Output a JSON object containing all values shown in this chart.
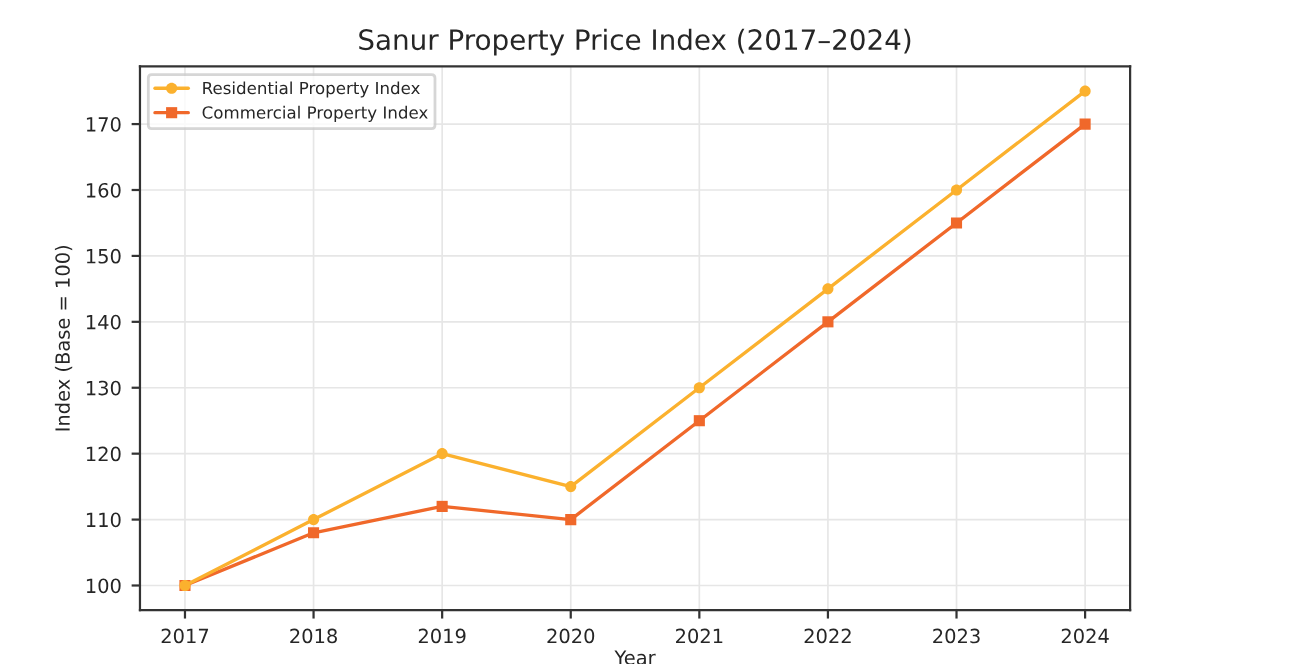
{
  "chart_data": {
    "type": "line",
    "title": "Sanur Property Price Index (2017–2024)",
    "xlabel": "Year",
    "ylabel": "Index (Base = 100)",
    "x": [
      2017,
      2018,
      2019,
      2020,
      2021,
      2022,
      2023,
      2024
    ],
    "series": [
      {
        "name": "Residential Property Index",
        "color": "#fbb12e",
        "marker": "circle",
        "values": [
          100,
          110,
          120,
          115,
          130,
          145,
          160,
          175
        ]
      },
      {
        "name": "Commercial Property Index",
        "color": "#f0682a",
        "marker": "square",
        "values": [
          100,
          108,
          112,
          110,
          125,
          140,
          155,
          170
        ]
      }
    ],
    "xlim": [
      2016.65,
      2024.35
    ],
    "xticks": [
      2017,
      2018,
      2019,
      2020,
      2021,
      2022,
      2023,
      2024
    ],
    "ylim": [
      96.25,
      178.75
    ],
    "yticks": [
      100,
      110,
      120,
      130,
      140,
      150,
      160,
      170
    ],
    "grid": true,
    "legend": "top left",
    "line_style": "solid"
  }
}
